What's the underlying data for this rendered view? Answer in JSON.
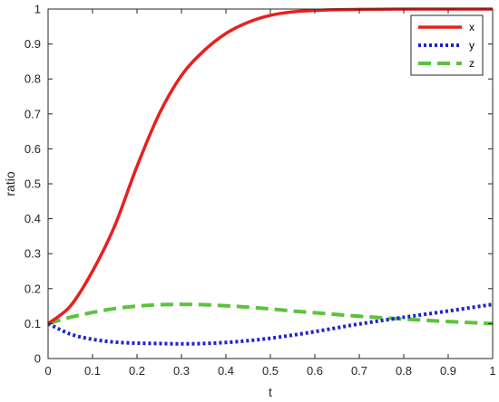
{
  "chart_data": {
    "type": "line",
    "xlabel": "t",
    "ylabel": "ratio",
    "xlim": [
      0,
      1
    ],
    "ylim": [
      0,
      1
    ],
    "x_ticks": [
      "0",
      "0.1",
      "0.2",
      "0.3",
      "0.4",
      "0.5",
      "0.6",
      "0.7",
      "0.8",
      "0.9",
      "1"
    ],
    "y_ticks": [
      "0",
      "0.1",
      "0.2",
      "0.3",
      "0.4",
      "0.5",
      "0.6",
      "0.7",
      "0.8",
      "0.9",
      "1"
    ],
    "grid": false,
    "legend_position": "top-right",
    "x": [
      0,
      0.05,
      0.1,
      0.15,
      0.2,
      0.25,
      0.3,
      0.35,
      0.4,
      0.45,
      0.5,
      0.55,
      0.6,
      0.65,
      0.7,
      0.8,
      0.9,
      1.0
    ],
    "series": [
      {
        "name": "x",
        "color": "#e8201e",
        "style": "solid",
        "values": [
          0.1,
          0.15,
          0.25,
          0.38,
          0.55,
          0.7,
          0.81,
          0.88,
          0.93,
          0.962,
          0.982,
          0.992,
          0.996,
          0.998,
          0.999,
          1.0,
          1.0,
          1.0
        ]
      },
      {
        "name": "y",
        "color": "#1c24c8",
        "style": "dotted",
        "values": [
          0.1,
          0.07,
          0.055,
          0.047,
          0.044,
          0.043,
          0.042,
          0.043,
          0.046,
          0.051,
          0.058,
          0.067,
          0.077,
          0.088,
          0.099,
          0.118,
          0.136,
          0.155
        ]
      },
      {
        "name": "z",
        "color": "#5cc23e",
        "style": "dashed",
        "values": [
          0.1,
          0.118,
          0.132,
          0.143,
          0.15,
          0.154,
          0.155,
          0.154,
          0.151,
          0.147,
          0.142,
          0.136,
          0.131,
          0.126,
          0.121,
          0.113,
          0.106,
          0.1
        ]
      }
    ]
  }
}
